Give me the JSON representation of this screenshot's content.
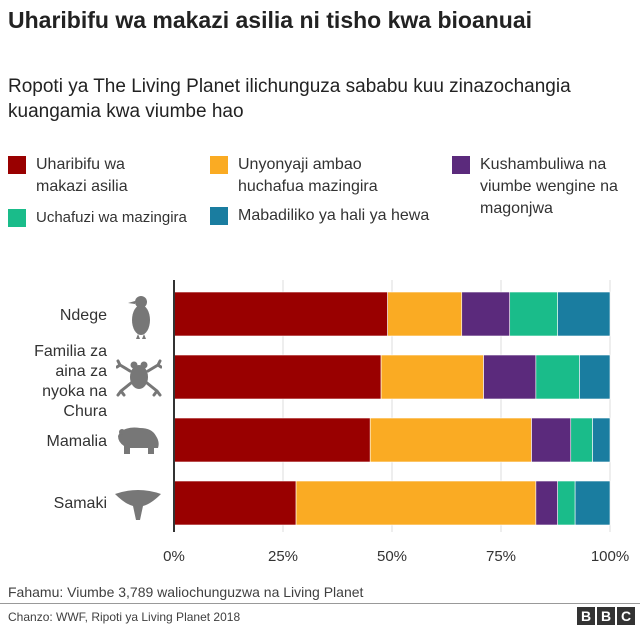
{
  "title": "Uharibifu wa makazi asilia ni tisho kwa bioanuai",
  "subtitle": "Ropoti ya The Living Planet ilichunguza sababu kuu zinazochangia kuangamia kwa viumbe hao",
  "legend": [
    {
      "label": "Uharibifu wa makazi asilia",
      "color": "#990000"
    },
    {
      "label": "Unyonyaji ambao huchafua mazingira",
      "color": "#FAAB23"
    },
    {
      "label": "Kushambuliwa na viumbe wengine na magonjwa",
      "color": "#5B2A7C"
    },
    {
      "label": "Uchafuzi wa mazingira",
      "color": "#1ABC8A"
    },
    {
      "label": "Mabadiliko ya hali ya hewa",
      "color": "#1A7DA0"
    }
  ],
  "categories": [
    {
      "label": "Ndege",
      "icon": "bird-icon"
    },
    {
      "label": "Familia za aina za nyoka na Chura",
      "icon": "frog-icon"
    },
    {
      "label": "Mamalia",
      "icon": "bear-icon"
    },
    {
      "label": "Samaki",
      "icon": "stingray-icon"
    }
  ],
  "ticks": [
    "0%",
    "25%",
    "50%",
    "75%",
    "100%"
  ],
  "footnote": "Fahamu: Viumbe 3,789 waliochunguzwa na Living Planet",
  "source": "Chanzo: WWF, Ripoti ya Living Planet 2018",
  "logo": [
    "B",
    "B",
    "C"
  ],
  "chart_data": {
    "type": "bar",
    "orientation": "horizontal",
    "stacked": true,
    "title": "Uharibifu wa makazi asilia ni tisho kwa bioanuai",
    "subtitle": "Ropoti ya The Living Planet ilichunguza sababu kuu zinazochangia kuangamia kwa viumbe hao",
    "categories": [
      "Ndege",
      "Familia za aina za nyoka na Chura",
      "Mamalia",
      "Samaki"
    ],
    "xlim": [
      0,
      100
    ],
    "xticks": [
      "0%",
      "25%",
      "50%",
      "75%",
      "100%"
    ],
    "grid": true,
    "legend_position": "top",
    "series": [
      {
        "name": "Uharibifu wa makazi asilia",
        "color": "#990000",
        "values": [
          49,
          47.5,
          45,
          28
        ]
      },
      {
        "name": "Unyonyaji ambao huchafua mazingira",
        "color": "#FAAB23",
        "values": [
          17,
          23.5,
          37,
          55
        ]
      },
      {
        "name": "Kushambuliwa na viumbe wengine na magonjwa",
        "color": "#5B2A7C",
        "values": [
          11,
          12,
          9,
          5
        ]
      },
      {
        "name": "Uchafuzi wa mazingira",
        "color": "#1ABC8A",
        "values": [
          11,
          10,
          5,
          4
        ]
      },
      {
        "name": "Mabadiliko ya hali ya hewa",
        "color": "#1A7DA0",
        "values": [
          12,
          7,
          4,
          8
        ]
      }
    ]
  }
}
